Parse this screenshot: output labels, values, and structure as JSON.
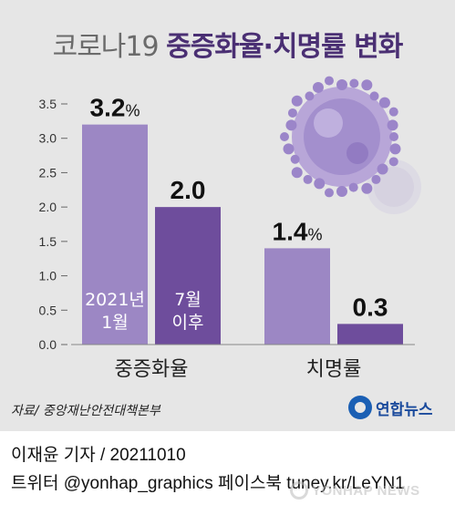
{
  "title": {
    "prefix": "코로나19",
    "main": "중증화율·치명률 변화"
  },
  "chart_data": {
    "type": "bar",
    "categories": [
      "중증화율",
      "치명률"
    ],
    "series": [
      {
        "name": "2021년 1월",
        "color": "#9c87c4",
        "values": [
          3.2,
          1.4
        ]
      },
      {
        "name": "7월 이후",
        "color": "#6e4d9c",
        "values": [
          2.0,
          0.3
        ]
      }
    ],
    "value_labels": [
      [
        "3.2",
        "%"
      ],
      [
        "2.0",
        ""
      ],
      [
        "1.4",
        "%"
      ],
      [
        "0.3",
        ""
      ]
    ],
    "yticks": [
      "0.0",
      "0.5",
      "1.0",
      "1.5",
      "2.0",
      "2.5",
      "3.0",
      "3.5"
    ],
    "ylim": [
      0,
      3.5
    ],
    "legend": "in-bar labels on first category",
    "grid": false,
    "decoration": "coronavirus-illustration"
  },
  "source": "자료/ 중앙재난안전대책본부",
  "logo": "연합뉴스",
  "credit": {
    "line1": "이재윤 기자 / 20211010",
    "line2": "트위터 @yonhap_graphics  페이스북 tuney.kr/LeYN1"
  },
  "watermark": "YONHAP NEWS"
}
